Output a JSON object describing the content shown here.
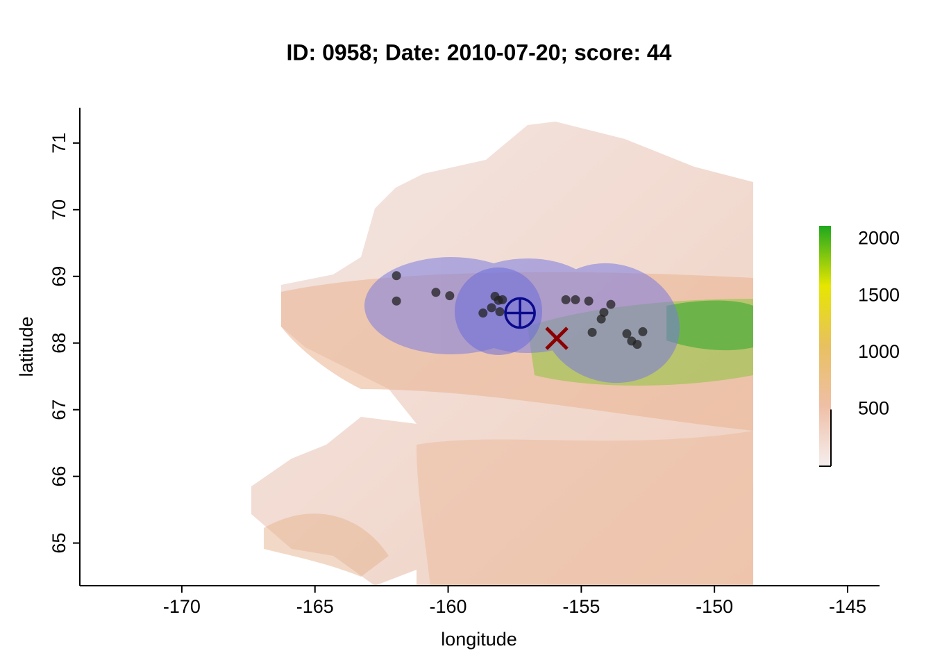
{
  "chart_data": {
    "type": "scatter",
    "title": "ID: 0958;  Date: 2010-07-20;  score: 44",
    "x_label": "longitude",
    "y_label": "latitude",
    "xlim": [
      -173.83,
      -143.8
    ],
    "ylim": [
      64.36,
      71.53
    ],
    "xticks": [
      -170,
      -165,
      -160,
      -155,
      -150,
      -145
    ],
    "yticks": [
      65,
      66,
      67,
      68,
      69,
      70,
      71
    ],
    "points": {
      "color": "#222222",
      "x": [
        -161.94,
        -161.94,
        -160.46,
        -159.94,
        -158.69,
        -158.37,
        -158.24,
        -158.11,
        -157.96,
        -158.06,
        -155.58,
        -155.22,
        -154.72,
        -153.89,
        -154.15,
        -154.25,
        -154.59,
        -153.29,
        -152.69,
        -153.11,
        -152.9
      ],
      "y": [
        69.01,
        68.63,
        68.76,
        68.71,
        68.45,
        68.53,
        68.7,
        68.64,
        68.65,
        68.47,
        68.65,
        68.65,
        68.63,
        68.58,
        68.46,
        68.36,
        68.16,
        68.14,
        68.17,
        68.03,
        67.98
      ]
    },
    "center": {
      "x": -157.3,
      "y": 68.45,
      "color": "#0a0a8c"
    },
    "estimate": {
      "x": -155.92,
      "y": 68.07,
      "color": "#8b0000"
    },
    "colorbar": {
      "lim": [
        0,
        2120
      ],
      "ticks": [
        500,
        1000,
        1500,
        2000
      ],
      "colors": [
        "#f5eeee",
        "#efbfa6",
        "#e8c060",
        "#e6e600",
        "#1ea81e"
      ]
    }
  }
}
